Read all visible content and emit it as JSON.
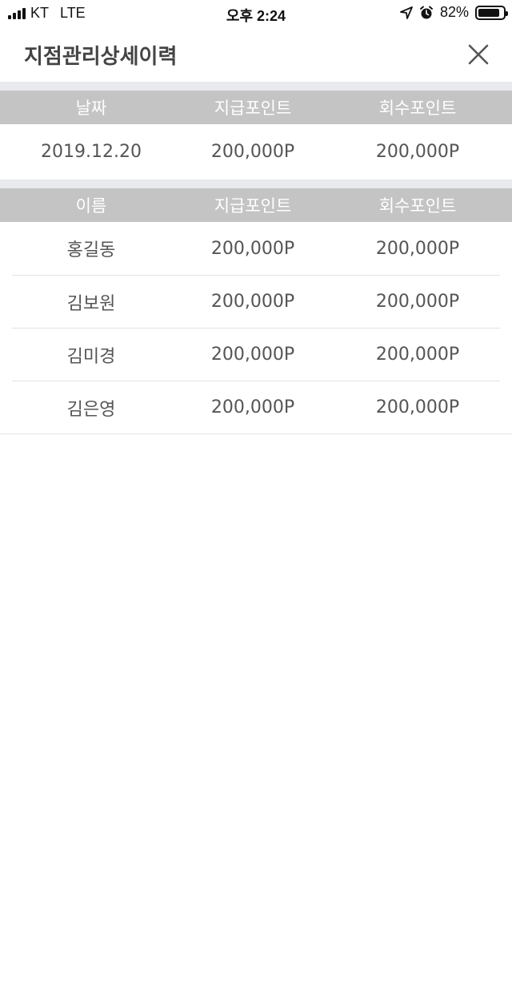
{
  "status_bar": {
    "carrier": "KT",
    "network": "LTE",
    "time": "오후 2:24",
    "battery": "82%"
  },
  "header": {
    "title": "지점관리상세이력"
  },
  "summary_table": {
    "headers": [
      "날짜",
      "지급포인트",
      "회수포인트"
    ],
    "row": [
      "2019.12.20",
      "200,000P",
      "200,000P"
    ]
  },
  "detail_table": {
    "headers": [
      "이름",
      "지급포인트",
      "회수포인트"
    ],
    "rows": [
      [
        "홍길동",
        "200,000P",
        "200,000P"
      ],
      [
        "김보원",
        "200,000P",
        "200,000P"
      ],
      [
        "김미경",
        "200,000P",
        "200,000P"
      ],
      [
        "김은영",
        "200,000P",
        "200,000P"
      ]
    ]
  },
  "icons": {
    "signal": "signal-icon",
    "location": "location-arrow-icon",
    "alarm": "alarm-icon",
    "battery": "battery-icon",
    "close": "close-icon"
  }
}
